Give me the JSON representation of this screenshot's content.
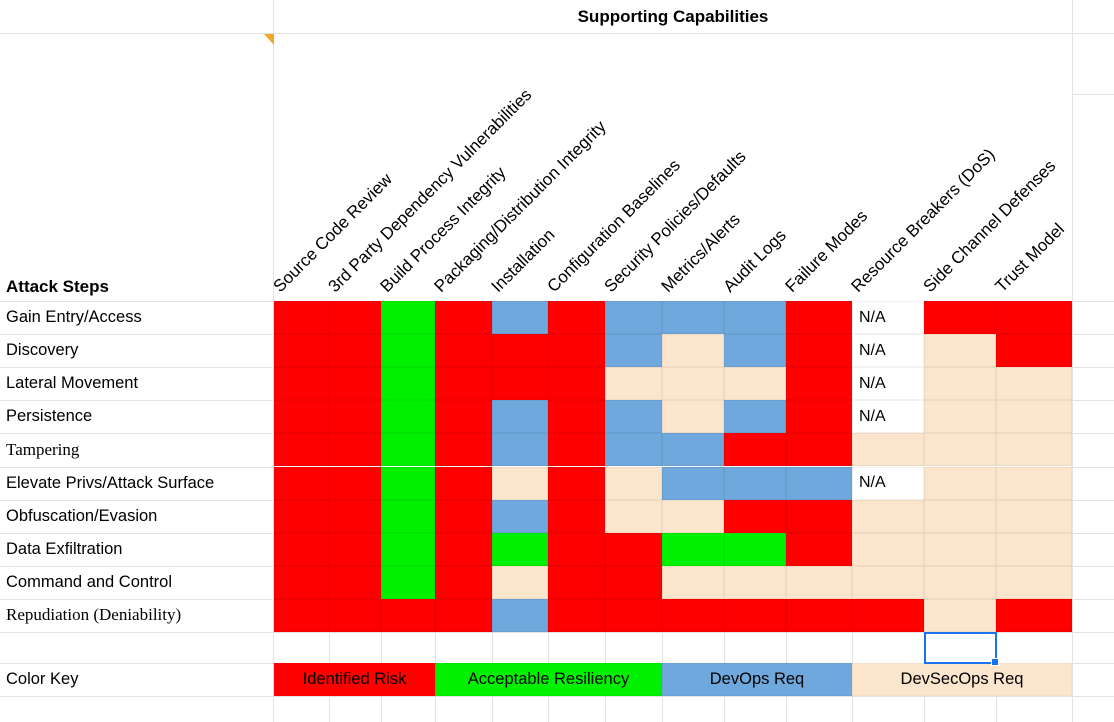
{
  "title": "Supporting Capabilities",
  "attack_steps_header": "Attack Steps",
  "columns": [
    "Source Code Review",
    "3rd Party Dependency Vulnerabilities",
    "Build Process Integrity",
    "Packaging/Distribution Integrity",
    "Installation",
    "Configuration Baselines",
    "Security Policies/Defaults",
    "Metrics/Alerts",
    "Audit Logs",
    "Failure Modes",
    "Resource Breakers (DoS)",
    "Side Channel Defenses",
    "Trust Model"
  ],
  "rows": [
    {
      "label": "Gain Entry/Access",
      "serif": false,
      "cells": [
        "R",
        "R",
        "G",
        "R",
        "B",
        "R",
        "B",
        "B",
        "B",
        "R",
        "N",
        "R",
        "R"
      ]
    },
    {
      "label": "Discovery",
      "serif": false,
      "cells": [
        "R",
        "R",
        "G",
        "R",
        "R",
        "R",
        "B",
        "T",
        "B",
        "R",
        "N",
        "T",
        "R"
      ]
    },
    {
      "label": "Lateral Movement",
      "serif": false,
      "cells": [
        "R",
        "R",
        "G",
        "R",
        "R",
        "R",
        "T",
        "T",
        "T",
        "R",
        "N",
        "T",
        "T"
      ]
    },
    {
      "label": "Persistence",
      "serif": false,
      "cells": [
        "R",
        "R",
        "G",
        "R",
        "B",
        "R",
        "B",
        "T",
        "B",
        "R",
        "N",
        "T",
        "T"
      ]
    },
    {
      "label": "Tampering",
      "serif": true,
      "cells": [
        "R",
        "R",
        "G",
        "R",
        "B",
        "R",
        "B",
        "B",
        "R",
        "R",
        "T",
        "T",
        "T"
      ]
    },
    {
      "label": "Elevate Privs/Attack Surface",
      "serif": false,
      "cells": [
        "R",
        "R",
        "G",
        "R",
        "T",
        "R",
        "T",
        "B",
        "B",
        "B",
        "N",
        "T",
        "T"
      ]
    },
    {
      "label": "Obfuscation/Evasion",
      "serif": false,
      "cells": [
        "R",
        "R",
        "G",
        "R",
        "B",
        "R",
        "T",
        "T",
        "R",
        "R",
        "T",
        "T",
        "T"
      ]
    },
    {
      "label": "Data Exfiltration",
      "serif": false,
      "cells": [
        "R",
        "R",
        "G",
        "R",
        "G",
        "R",
        "R",
        "G",
        "G",
        "R",
        "T",
        "T",
        "T"
      ]
    },
    {
      "label": "Command and Control",
      "serif": false,
      "cells": [
        "R",
        "R",
        "G",
        "R",
        "T",
        "R",
        "R",
        "T",
        "T",
        "T",
        "T",
        "T",
        "T"
      ]
    },
    {
      "label": "Repudiation (Deniability)",
      "serif": true,
      "cells": [
        "R",
        "R",
        "R",
        "R",
        "B",
        "R",
        "R",
        "R",
        "R",
        "R",
        "R",
        "T",
        "R"
      ]
    }
  ],
  "na_text": "N/A",
  "palette": {
    "R": "#fe0000",
    "G": "#00f000",
    "B": "#6fa8dc",
    "T": "#fce5cd"
  },
  "cell_legend": {
    "R": "Identified Risk",
    "G": "Acceptable Resiliency",
    "B": "DevOps Req",
    "T": "DevSecOps Req",
    "N": "N/A"
  },
  "color_key": {
    "label": "Color Key",
    "entries": [
      {
        "label": "Identified Risk",
        "color": "#fe0000",
        "col_span": [
          0,
          3
        ]
      },
      {
        "label": "Acceptable Resiliency",
        "color": "#00f000",
        "col_span": [
          3,
          7
        ]
      },
      {
        "label": "DevOps Req",
        "color": "#6fa8dc",
        "col_span": [
          7,
          10
        ]
      },
      {
        "label": "DevSecOps Req",
        "color": "#fce5cd",
        "col_span": [
          10,
          13
        ]
      }
    ]
  },
  "selection": {
    "col": 12,
    "color": "#1a73e8"
  },
  "colors": {
    "gridline": "#e2e2e2",
    "note_marker": "#f5a623",
    "selection_blue": "#1a73e8"
  }
}
